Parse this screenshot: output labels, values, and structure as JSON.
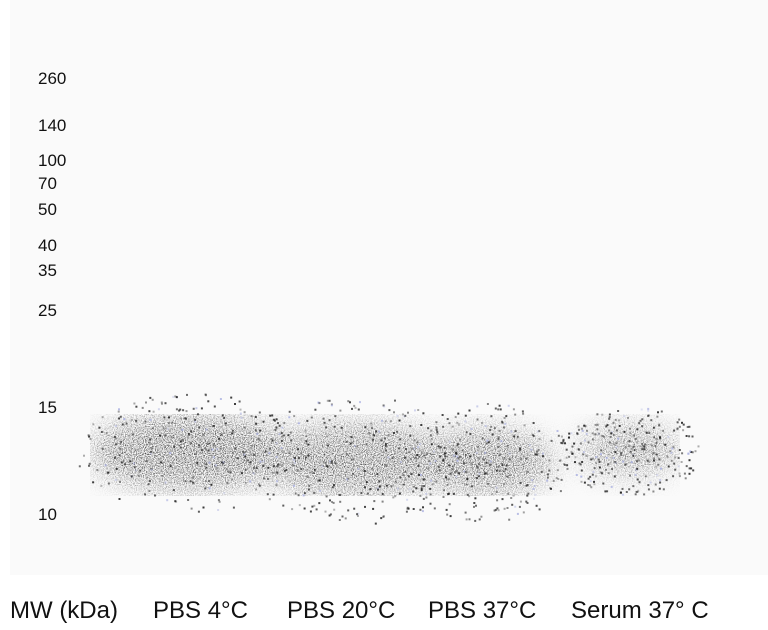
{
  "markers": [
    260,
    140,
    100,
    70,
    50,
    40,
    35,
    25,
    15,
    10
  ],
  "lanes": [
    "MW (kDa)",
    "PBS 4°C",
    "PBS 20°C",
    "PBS 37°C",
    "Serum 37° C"
  ]
}
